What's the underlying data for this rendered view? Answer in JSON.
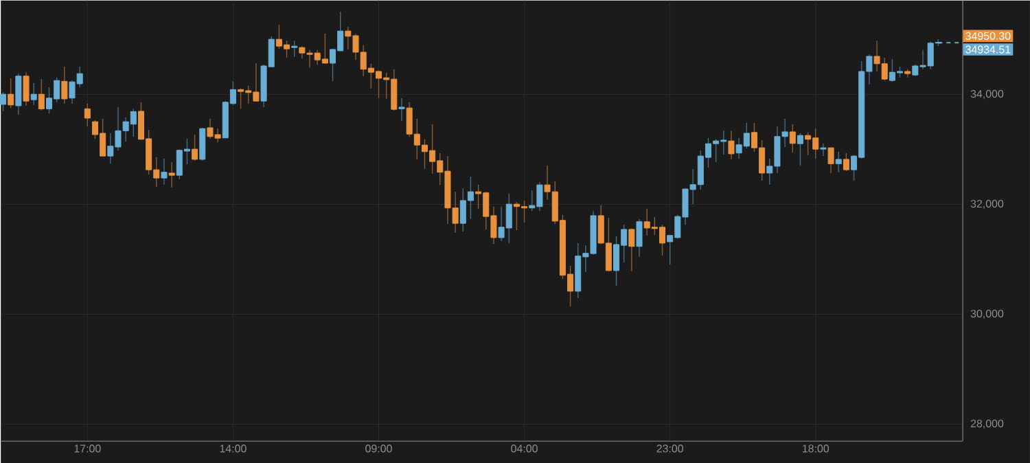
{
  "chart_data": {
    "type": "candlestick",
    "categories": [
      null,
      null,
      null,
      null,
      null,
      null,
      null,
      null,
      null,
      null,
      null,
      "17:00",
      null,
      null,
      null,
      null,
      null,
      null,
      null,
      null,
      null,
      null,
      null,
      null,
      null,
      null,
      null,
      null,
      null,
      null,
      "14:00",
      null,
      null,
      null,
      null,
      null,
      null,
      null,
      null,
      null,
      null,
      null,
      null,
      null,
      null,
      null,
      null,
      null,
      null,
      "09:00",
      null,
      null,
      null,
      null,
      null,
      null,
      null,
      null,
      null,
      null,
      null,
      null,
      null,
      null,
      null,
      null,
      null,
      null,
      "04:00",
      null,
      null,
      null,
      null,
      null,
      null,
      null,
      null,
      null,
      null,
      null,
      null,
      null,
      null,
      null,
      null,
      null,
      null,
      "23:00",
      null,
      null,
      null,
      null,
      null,
      null,
      null,
      null,
      null,
      null,
      null,
      null,
      null,
      null,
      null,
      null,
      null,
      null,
      "18:00",
      null,
      null,
      null,
      null,
      null,
      null,
      null,
      null,
      null,
      null,
      null,
      null,
      null,
      null,
      null,
      null
    ],
    "ohlc": [
      [
        33820,
        34045,
        33695,
        34005
      ],
      [
        34005,
        34295,
        33755,
        33810
      ],
      [
        33795,
        34380,
        33630,
        34335
      ],
      [
        34335,
        34405,
        33795,
        33880
      ],
      [
        33905,
        34210,
        33810,
        34005
      ],
      [
        34005,
        34280,
        33710,
        33740
      ],
      [
        33740,
        34130,
        33655,
        33935
      ],
      [
        33920,
        34310,
        33860,
        34255
      ],
      [
        34240,
        34505,
        33835,
        33920
      ],
      [
        33935,
        34255,
        33835,
        34230
      ],
      [
        34195,
        34505,
        34130,
        34380
      ],
      [
        33740,
        33835,
        33420,
        33570
      ],
      [
        33505,
        33530,
        33195,
        33270
      ],
      [
        33295,
        33560,
        32880,
        32880
      ],
      [
        32880,
        33295,
        32740,
        33060
      ],
      [
        33045,
        33770,
        32980,
        33340
      ],
      [
        33340,
        33585,
        33145,
        33505
      ],
      [
        33460,
        33740,
        33235,
        33690
      ],
      [
        33695,
        33860,
        33170,
        33185
      ],
      [
        33195,
        33355,
        32545,
        32630
      ],
      [
        32630,
        32860,
        32320,
        32480
      ],
      [
        32480,
        32835,
        32360,
        32585
      ],
      [
        32570,
        32770,
        32310,
        32530
      ],
      [
        32530,
        33005,
        32460,
        32985
      ],
      [
        32970,
        33195,
        32730,
        33005
      ],
      [
        33005,
        33270,
        32795,
        32820
      ],
      [
        32820,
        33395,
        32795,
        33380
      ],
      [
        33395,
        33560,
        33195,
        33235
      ],
      [
        33270,
        33380,
        33130,
        33205
      ],
      [
        33210,
        33880,
        33210,
        33860
      ],
      [
        33835,
        34240,
        33810,
        34090
      ],
      [
        34090,
        34110,
        33740,
        34055
      ],
      [
        34070,
        34160,
        33835,
        34035
      ],
      [
        34045,
        34570,
        33880,
        33880
      ],
      [
        33880,
        34545,
        33770,
        34520
      ],
      [
        34505,
        35060,
        34505,
        35005
      ],
      [
        35005,
        35270,
        34835,
        34880
      ],
      [
        34905,
        34980,
        34670,
        34830
      ],
      [
        34855,
        34980,
        34685,
        34880
      ],
      [
        34855,
        34880,
        34655,
        34755
      ],
      [
        34755,
        34810,
        34490,
        34730
      ],
      [
        34755,
        34810,
        34545,
        34630
      ],
      [
        34645,
        35110,
        34570,
        34570
      ],
      [
        34570,
        34835,
        34240,
        34820
      ],
      [
        34795,
        35505,
        34795,
        35155
      ],
      [
        35155,
        35230,
        34820,
        35060
      ],
      [
        35070,
        35105,
        34630,
        34770
      ],
      [
        34770,
        34895,
        34335,
        34460
      ],
      [
        34480,
        34560,
        34105,
        34405
      ],
      [
        34420,
        34435,
        33935,
        34295
      ],
      [
        34305,
        34395,
        33920,
        34270
      ],
      [
        34280,
        34460,
        33710,
        33730
      ],
      [
        33740,
        33935,
        33520,
        33770
      ],
      [
        33755,
        33860,
        33230,
        33280
      ],
      [
        33280,
        33560,
        32820,
        33080
      ],
      [
        33080,
        33185,
        32645,
        32960
      ],
      [
        32980,
        33460,
        32560,
        32780
      ],
      [
        32795,
        32935,
        32355,
        32585
      ],
      [
        32605,
        32880,
        31645,
        31935
      ],
      [
        31935,
        32230,
        31485,
        31655
      ],
      [
        31655,
        32295,
        31505,
        32070
      ],
      [
        32070,
        32505,
        31735,
        32230
      ],
      [
        32230,
        32360,
        31920,
        32195
      ],
      [
        32210,
        32230,
        31545,
        31780
      ],
      [
        31795,
        31960,
        31280,
        31395
      ],
      [
        31395,
        31960,
        31335,
        31585
      ],
      [
        31570,
        32195,
        31295,
        32005
      ],
      [
        32005,
        32045,
        31530,
        31960
      ],
      [
        31960,
        32070,
        31670,
        31935
      ],
      [
        31935,
        32255,
        31880,
        31980
      ],
      [
        31960,
        32405,
        31880,
        32355
      ],
      [
        32355,
        32710,
        32085,
        32230
      ],
      [
        32230,
        32420,
        31645,
        31695
      ],
      [
        31710,
        31810,
        30645,
        30710
      ],
      [
        30730,
        30880,
        30145,
        30420
      ],
      [
        30420,
        31295,
        30295,
        31060
      ],
      [
        31045,
        31255,
        30770,
        31110
      ],
      [
        31105,
        31880,
        31085,
        31795
      ],
      [
        31795,
        31985,
        31280,
        31295
      ],
      [
        31295,
        31755,
        30780,
        30795
      ],
      [
        30795,
        31420,
        30520,
        31270
      ],
      [
        31255,
        31630,
        30945,
        31545
      ],
      [
        31545,
        31560,
        30780,
        31235
      ],
      [
        31235,
        31735,
        31045,
        31685
      ],
      [
        31685,
        31920,
        31435,
        31570
      ],
      [
        31585,
        31770,
        31445,
        31560
      ],
      [
        31585,
        31630,
        31070,
        31295
      ],
      [
        31320,
        31435,
        30905,
        31435
      ],
      [
        31395,
        31810,
        31380,
        31780
      ],
      [
        31770,
        32295,
        31630,
        32280
      ],
      [
        32270,
        32645,
        32005,
        32360
      ],
      [
        32360,
        32980,
        32270,
        32880
      ],
      [
        32855,
        33210,
        32670,
        33105
      ],
      [
        33105,
        33185,
        32770,
        33155
      ],
      [
        33145,
        33340,
        32905,
        33170
      ],
      [
        33155,
        33340,
        32820,
        32920
      ],
      [
        32935,
        33210,
        32835,
        33085
      ],
      [
        33060,
        33485,
        33020,
        33295
      ],
      [
        33310,
        33480,
        32960,
        33030
      ],
      [
        33030,
        33170,
        32435,
        32570
      ],
      [
        32570,
        32835,
        32360,
        32695
      ],
      [
        32695,
        33420,
        32570,
        33235
      ],
      [
        33235,
        33560,
        33045,
        33320
      ],
      [
        33320,
        33460,
        32945,
        33110
      ],
      [
        33105,
        33295,
        32710,
        33255
      ],
      [
        33255,
        33310,
        32895,
        33185
      ],
      [
        33210,
        33380,
        32835,
        33005
      ],
      [
        33005,
        33110,
        32880,
        33030
      ],
      [
        33030,
        33030,
        32570,
        32740
      ],
      [
        32740,
        32960,
        32585,
        32820
      ],
      [
        32820,
        32935,
        32605,
        32630
      ],
      [
        32630,
        32895,
        32435,
        32880
      ],
      [
        32855,
        34605,
        32835,
        34420
      ],
      [
        34420,
        34730,
        34185,
        34695
      ],
      [
        34695,
        34980,
        34420,
        34560
      ],
      [
        34560,
        34670,
        34255,
        34280
      ],
      [
        34255,
        34645,
        34230,
        34405
      ],
      [
        34395,
        34505,
        34310,
        34420
      ],
      [
        34420,
        34460,
        34310,
        34380
      ],
      [
        34355,
        34545,
        34335,
        34520
      ],
      [
        34505,
        34810,
        34460,
        34530
      ],
      [
        34520,
        34960,
        34460,
        34935
      ],
      [
        34935,
        35005,
        34880,
        34950
      ]
    ],
    "colors": [
      "#6aaed6",
      "#e8913f",
      "#6aaed6",
      "#e8913f",
      "#6aaed6",
      "#e8913f",
      "#6aaed6",
      "#6aaed6",
      "#e8913f",
      "#6aaed6",
      "#6aaed6",
      "#e8913f",
      "#e8913f",
      "#e8913f",
      "#6aaed6",
      "#6aaed6",
      "#6aaed6",
      "#6aaed6",
      "#e8913f",
      "#e8913f",
      "#e8913f",
      "#6aaed6",
      "#e8913f",
      "#6aaed6",
      "#6aaed6",
      "#e8913f",
      "#6aaed6",
      "#e8913f",
      "#e8913f",
      "#6aaed6",
      "#6aaed6",
      "#e8913f",
      "#e8913f",
      "#e8913f",
      "#6aaed6",
      "#6aaed6",
      "#e8913f",
      "#e8913f",
      "#6aaed6",
      "#e8913f",
      "#e8913f",
      "#e8913f",
      "#e8913f",
      "#6aaed6",
      "#6aaed6",
      "#e8913f",
      "#e8913f",
      "#e8913f",
      "#e8913f",
      "#e8913f",
      "#e8913f",
      "#e8913f",
      "#6aaed6",
      "#e8913f",
      "#e8913f",
      "#e8913f",
      "#e8913f",
      "#e8913f",
      "#e8913f",
      "#e8913f",
      "#6aaed6",
      "#6aaed6",
      "#e8913f",
      "#e8913f",
      "#e8913f",
      "#6aaed6",
      "#6aaed6",
      "#e8913f",
      "#e8913f",
      "#6aaed6",
      "#6aaed6",
      "#e8913f",
      "#e8913f",
      "#e8913f",
      "#e8913f",
      "#6aaed6",
      "#6aaed6",
      "#6aaed6",
      "#e8913f",
      "#e8913f",
      "#6aaed6",
      "#6aaed6",
      "#e8913f",
      "#6aaed6",
      "#e8913f",
      "#e8913f",
      "#e8913f",
      "#6aaed6",
      "#6aaed6",
      "#6aaed6",
      "#6aaed6",
      "#6aaed6",
      "#6aaed6",
      "#6aaed6",
      "#6aaed6",
      "#e8913f",
      "#6aaed6",
      "#6aaed6",
      "#e8913f",
      "#e8913f",
      "#6aaed6",
      "#6aaed6",
      "#6aaed6",
      "#e8913f",
      "#6aaed6",
      "#e8913f",
      "#e8913f",
      "#6aaed6",
      "#e8913f",
      "#6aaed6",
      "#e8913f",
      "#6aaed6",
      "#6aaed6",
      "#6aaed6",
      "#e8913f",
      "#e8913f",
      "#6aaed6",
      "#6aaed6",
      "#e8913f",
      "#6aaed6",
      "#6aaed6",
      "#6aaed6",
      "#6aaed6"
    ],
    "ylim": [
      27690,
      35710
    ],
    "yticks": [
      {
        "value": 28000,
        "label": "28,000"
      },
      {
        "value": 30000,
        "label": "30,000"
      },
      {
        "value": 32000,
        "label": "32,000"
      },
      {
        "value": 34000,
        "label": "34,000"
      }
    ],
    "grid": true,
    "annotations": [
      "34950.30",
      "34934.51"
    ]
  }
}
